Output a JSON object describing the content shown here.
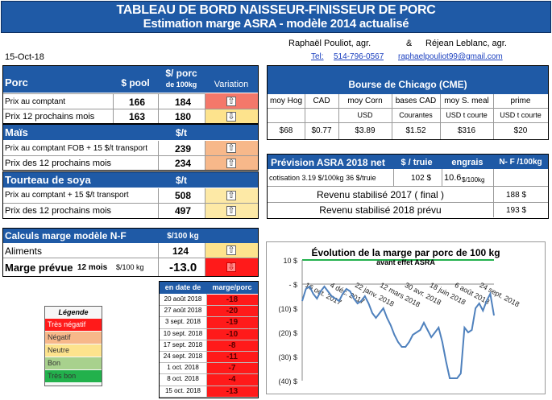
{
  "title": {
    "line1": "TABLEAU DE BORD NAISSEUR-FINISSEUR DE PORC",
    "line2": "Estimation marge ASRA - modèle 2014 actualisé"
  },
  "authors": {
    "a1": "Raphaël Pouliot, agr.",
    "amp": "&",
    "a2": "Réjean Leblanc, agr.",
    "tel_label": "Tel:",
    "tel": "514-796-0567",
    "email": "raphaelpouliot99@gmail.com"
  },
  "date": "15-Oct-18",
  "porc": {
    "h_label": "Porc",
    "h_pool": "$ pool",
    "h_100": "$/ porc",
    "h_100b": "de 100kg",
    "h_var": "Variation",
    "rows": [
      {
        "label": "Prix au comptant",
        "pool": "166",
        "kg": "184",
        "arrow": "⇧",
        "color": "#f4786a"
      },
      {
        "label": "Prix 12 prochains mois",
        "pool": "163",
        "kg": "180",
        "arrow": "⇩",
        "color": "#fde38d"
      }
    ]
  },
  "mais": {
    "h_label": "Maïs",
    "h_unit": "$/t",
    "rows": [
      {
        "label": "Prix au comptant FOB + 15 $/t transport",
        "val": "239",
        "arrow": "⇧",
        "color": "#f7b88a"
      },
      {
        "label": "Prix des 12 prochains mois",
        "val": "234",
        "arrow": "⇧",
        "color": "#f7b88a"
      }
    ]
  },
  "soya": {
    "h_label": "Tourteau de soya",
    "h_unit": "$/t",
    "rows": [
      {
        "label": "Prix au comptant + 15 $/t transport",
        "val": "508",
        "arrow": "⇧",
        "color": "#fde9a6"
      },
      {
        "label": "Prix des 12 prochains mois",
        "val": "497",
        "arrow": "⇧",
        "color": "#fde9a6"
      }
    ]
  },
  "calculs": {
    "h_label": "Calculs marge modèle N-F",
    "h_unit": "$/100 kg",
    "aliments_label": "Aliments",
    "aliments_val": "124",
    "aliments_arrow": "⇧",
    "aliments_color": "#fde38d",
    "marge_label": "Marge prévue",
    "marge_sub": "12 mois",
    "marge_unit": "$/100 kg",
    "marge_val": "-13.0",
    "marge_arrow": "⇩",
    "marge_color": "#ff1a1a"
  },
  "history": {
    "h_date": "en date de",
    "h_marge": "marge/porc",
    "rows": [
      {
        "date": "20 août 2018",
        "val": "-18"
      },
      {
        "date": "27 août 2018",
        "val": "-20"
      },
      {
        "date": "3 sept. 2018",
        "val": "-19"
      },
      {
        "date": "10 sept. 2018",
        "val": "-10"
      },
      {
        "date": "17 sept. 2018",
        "val": "-8"
      },
      {
        "date": "24 sept. 2018",
        "val": "-11"
      },
      {
        "date": "1 oct. 2018",
        "val": "-7"
      },
      {
        "date": "8 oct. 2018",
        "val": "-4"
      },
      {
        "date": "15 oct. 2018",
        "val": "-13"
      }
    ]
  },
  "legend": {
    "title": "Légende",
    "items": [
      {
        "label": "Très négatif",
        "color": "#ff1a1a",
        "text": "#ffffff"
      },
      {
        "label": "Négatif",
        "color": "#f7b88a",
        "text": "#333333"
      },
      {
        "label": "Neutre",
        "color": "#fde38d",
        "text": "#333333"
      },
      {
        "label": "Bon",
        "color": "#a8d18d",
        "text": "#333333"
      },
      {
        "label": "Très bon",
        "color": "#22b14c",
        "text": "#333333"
      }
    ]
  },
  "cme": {
    "title": "Bourse de Chicago (CME)",
    "cols": [
      "moy Hog",
      "CAD",
      "moy Corn",
      "bases CAD",
      "moy S. meal",
      "prime"
    ],
    "units": [
      "",
      "",
      "USD",
      "Courantes",
      "USD t courte",
      "USD t courte"
    ],
    "values": [
      "$68",
      "$0.77",
      "$3.89",
      "$1.52",
      "$316",
      "$20"
    ]
  },
  "asra": {
    "h_label": "Prévision ASRA 2018 net",
    "h_truie": "$ / truie",
    "h_engrais": "engrais",
    "h_nf": "N- F /100kg",
    "cot_label": "cotisation 3.19 $/100kg 36 $/truie",
    "cot_truie": "102 $",
    "cot_engrais": "10.6",
    "cot_engrais_unit": "$/100kg",
    "rev2017_label": "Revenu stabilisé 2017 ( final )",
    "rev2017_val": "188 $",
    "rev2018_label": "Revenu stabilisé 2018 prévu",
    "rev2018_val": "193 $"
  },
  "chart_data": {
    "type": "line",
    "title": "Évolution  de la marge par porc de 100  kg",
    "subtitle": "avant effet ASRA",
    "y_tick_labels": [
      "10 $",
      "-  $",
      "(10) $",
      "(20) $",
      "(30) $",
      "(40) $"
    ],
    "ylim": [
      -40,
      10
    ],
    "x_tick_labels": [
      "16 oct. 2017",
      "4 déc. 2017",
      "22 janv. 2018",
      "12 mars 2018",
      "30 avr. 2018",
      "18 juin 2018",
      "6 août 2018",
      "24 sept. 2018"
    ],
    "xlim": [
      "2017-10-16",
      "2018-10-15"
    ],
    "series": [
      {
        "color": "#4f81bd",
        "x": [
          "2017-10-16",
          "2017-10-23",
          "2017-10-30",
          "2017-11-06",
          "2017-11-13",
          "2017-11-20",
          "2017-11-27",
          "2017-12-04",
          "2017-12-11",
          "2017-12-18",
          "2017-12-25",
          "2018-01-01",
          "2018-01-08",
          "2018-01-15",
          "2018-01-22",
          "2018-01-29",
          "2018-02-05",
          "2018-02-12",
          "2018-02-19",
          "2018-02-26",
          "2018-03-05",
          "2018-03-12",
          "2018-03-19",
          "2018-03-26",
          "2018-04-02",
          "2018-04-09",
          "2018-04-16",
          "2018-04-23",
          "2018-04-30",
          "2018-05-07",
          "2018-05-14",
          "2018-05-21",
          "2018-05-28",
          "2018-06-04",
          "2018-06-11",
          "2018-06-18",
          "2018-06-25",
          "2018-07-02",
          "2018-07-09",
          "2018-07-16",
          "2018-07-23",
          "2018-07-30",
          "2018-08-06",
          "2018-08-13",
          "2018-08-20",
          "2018-08-27",
          "2018-09-03",
          "2018-09-10",
          "2018-09-17",
          "2018-09-24",
          "2018-10-01",
          "2018-10-08",
          "2018-10-15"
        ],
        "values": [
          -7,
          -2,
          -1,
          -4,
          -6,
          -3,
          -1,
          -3,
          -5,
          -6,
          -7,
          -4,
          -2,
          -3,
          -6,
          -8,
          -7,
          -5,
          -8,
          -12,
          -14,
          -12,
          -10,
          -14,
          -17,
          -21,
          -24,
          -26,
          -26,
          -24,
          -21,
          -20,
          -19,
          -16,
          -19,
          -22,
          -20,
          -18,
          -24,
          -32,
          -39,
          -39,
          -39,
          -37,
          -18,
          -20,
          -19,
          -10,
          -8,
          -11,
          -7,
          -4,
          -13
        ]
      }
    ]
  }
}
